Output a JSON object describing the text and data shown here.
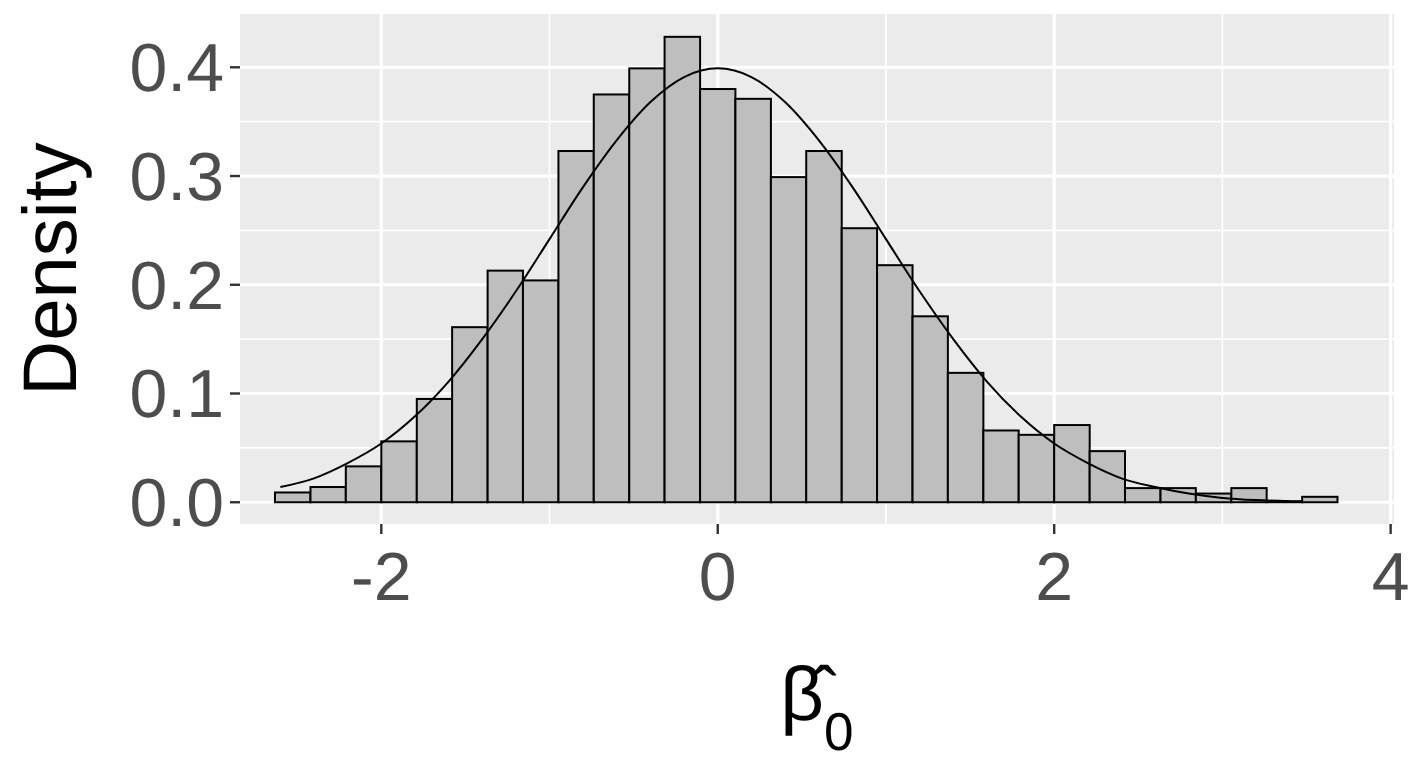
{
  "chart_data": {
    "type": "histogram",
    "xlabel": "β̂$_{0}$",
    "ylabel": "Density",
    "xlim": [
      -2.84,
      4.02
    ],
    "ylim": [
      -0.02,
      0.449
    ],
    "xticks": [
      -2,
      0,
      2,
      4
    ],
    "yticks": [
      {
        "value": 0,
        "label": "0.0"
      },
      {
        "value": 0.1,
        "label": "0.1"
      },
      {
        "value": 0.2,
        "label": "0.2"
      },
      {
        "value": 0.3,
        "label": "0.3"
      },
      {
        "value": 0.4,
        "label": "0.4"
      }
    ],
    "grid": true,
    "series": [
      {
        "type": "histogram",
        "color": "#bebebe",
        "bins": [
          -2.632,
          -2.421,
          -2.211,
          -2,
          -1.789,
          -1.579,
          -1.368,
          -1.158,
          -0.947,
          -0.737,
          -0.526,
          -0.316,
          -0.105,
          0.105,
          0.316,
          0.526,
          0.737,
          0.947,
          1.158,
          1.368,
          1.579,
          1.789,
          2,
          2.211,
          2.421,
          2.632,
          2.842,
          3.053,
          3.263,
          3.474,
          3.684
        ],
        "values": [
          0.009,
          0.014,
          0.033,
          0.056,
          0.095,
          0.161,
          0.213,
          0.204,
          0.323,
          0.375,
          0.399,
          0.428,
          0.38,
          0.371,
          0.299,
          0.323,
          0.252,
          0.218,
          0.171,
          0.119,
          0.066,
          0.062,
          0.071,
          0.047,
          0.013,
          0.013,
          0.008,
          0.013,
          0.001,
          0.005
        ]
      },
      {
        "type": "line",
        "color": "#000000",
        "x": [
          -2.6,
          -2.4,
          -2.2,
          -2,
          -1.8,
          -1.6,
          -1.4,
          -1.2,
          -1,
          -0.8,
          -0.6,
          -0.4,
          -0.2,
          0,
          0.2,
          0.4,
          0.6,
          0.8,
          1,
          1.2,
          1.4,
          1.6,
          1.8,
          2,
          2.2,
          2.4,
          2.6,
          2.8,
          3,
          3.2,
          3.4
        ],
        "values": [
          0.014,
          0.022,
          0.036,
          0.054,
          0.079,
          0.111,
          0.15,
          0.194,
          0.242,
          0.29,
          0.333,
          0.368,
          0.391,
          0.399,
          0.391,
          0.368,
          0.333,
          0.29,
          0.242,
          0.194,
          0.15,
          0.111,
          0.079,
          0.054,
          0.036,
          0.022,
          0.014,
          0.008,
          0.004,
          0.002,
          0.001
        ]
      }
    ]
  }
}
